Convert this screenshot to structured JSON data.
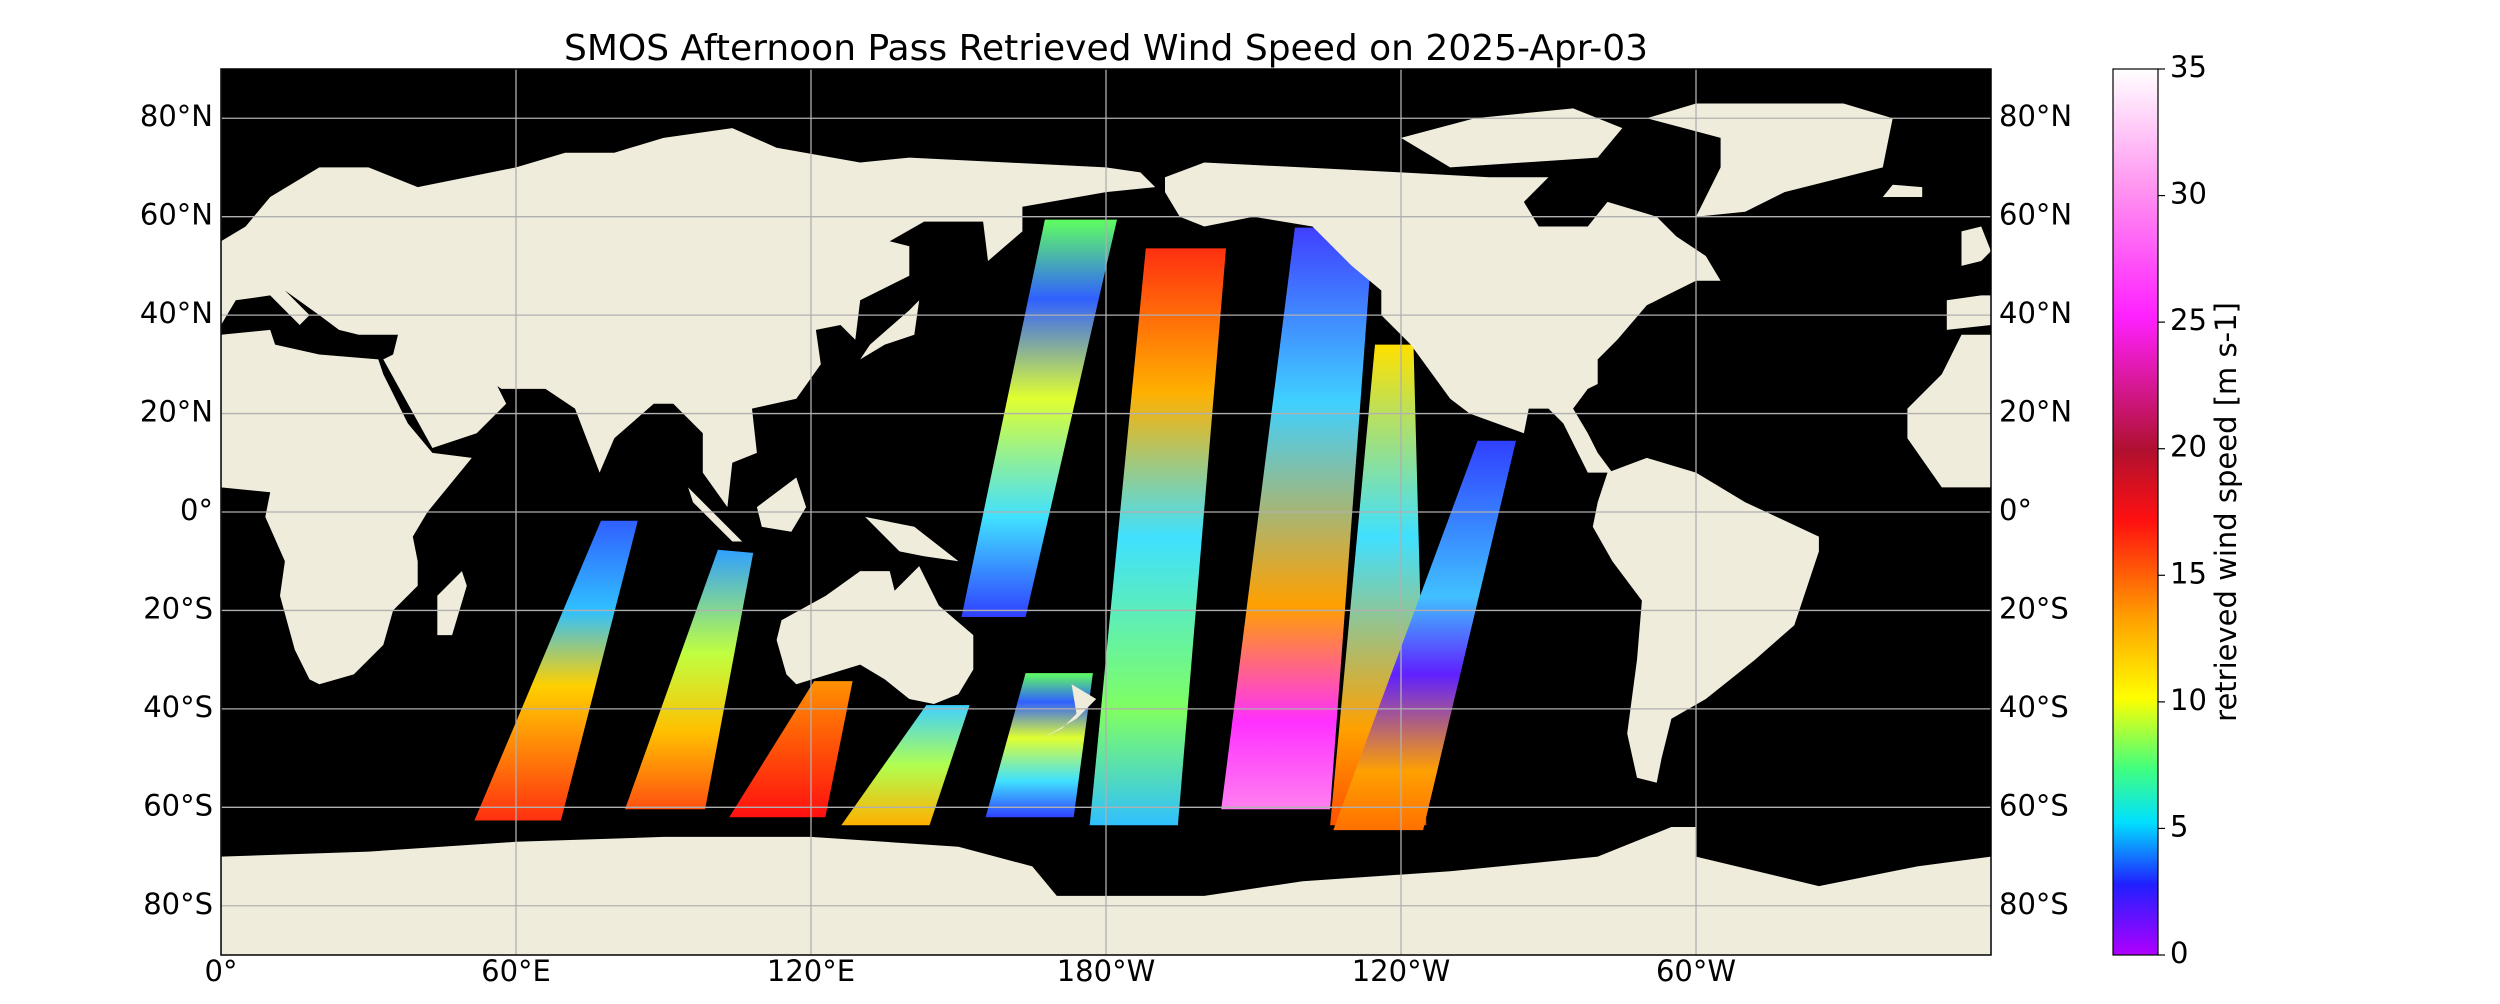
{
  "map": {
    "title": "SMOS Afternoon Pass Retrieved Wind Speed on 2025-Apr-03",
    "lat_ticks": [
      {
        "value": 80,
        "label": "80°N"
      },
      {
        "value": 60,
        "label": "60°N"
      },
      {
        "value": 40,
        "label": "40°N"
      },
      {
        "value": 20,
        "label": "20°N"
      },
      {
        "value": 0,
        "label": "0°"
      },
      {
        "value": -20,
        "label": "20°S"
      },
      {
        "value": -40,
        "label": "40°S"
      },
      {
        "value": -60,
        "label": "60°S"
      },
      {
        "value": -80,
        "label": "80°S"
      }
    ],
    "lon_ticks": [
      {
        "value": 0,
        "label": "0°"
      },
      {
        "value": 60,
        "label": "60°E"
      },
      {
        "value": 120,
        "label": "120°E"
      },
      {
        "value": 180,
        "label": "180°W"
      },
      {
        "value": 240,
        "label": "120°W"
      },
      {
        "value": 300,
        "label": "60°W"
      }
    ],
    "colorbar": {
      "label": "retrieved wind speed [m s-1]",
      "limits": [
        0,
        35
      ],
      "ticks": [
        0,
        5,
        10,
        15,
        20,
        25,
        30,
        35
      ]
    }
  }
}
